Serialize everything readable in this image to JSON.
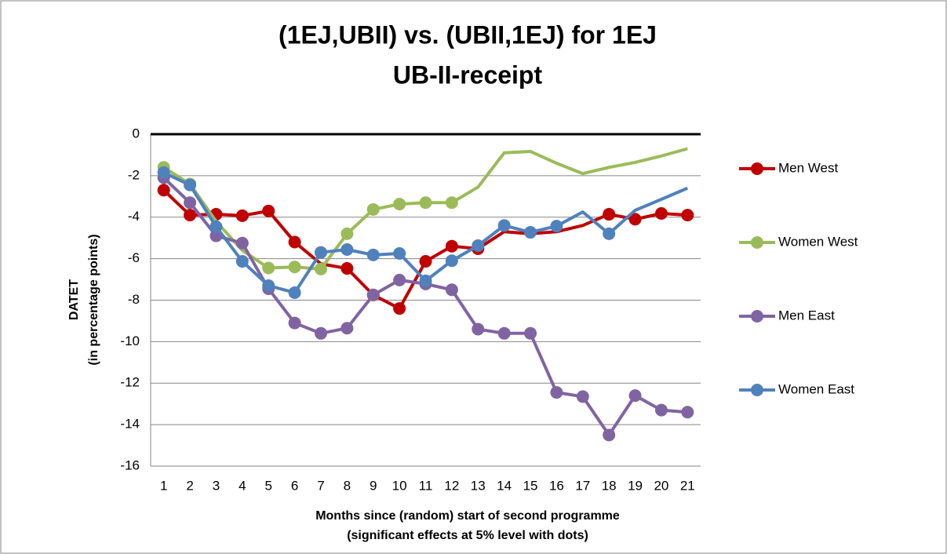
{
  "chart_data": {
    "type": "line",
    "title": [
      "(1EJ,UBII) vs. (UBII,1EJ) for 1EJ",
      "UB-II-receipt"
    ],
    "ylabel": [
      "DATET",
      "(in percentage points)"
    ],
    "xlabel": [
      "Months since (random) start of second programme",
      "(significant  effects at 5% level with dots)"
    ],
    "categories": [
      "1",
      "2",
      "3",
      "4",
      "5",
      "6",
      "7",
      "8",
      "9",
      "10",
      "11",
      "12",
      "13",
      "14",
      "15",
      "16",
      "17",
      "18",
      "19",
      "20",
      "21"
    ],
    "series": [
      {
        "name": "Men West",
        "color": "#c00000",
        "values": [
          -2.7,
          -3.9,
          -3.86,
          -3.93,
          -3.7,
          -5.2,
          -6.25,
          -6.47,
          -7.75,
          -8.4,
          -6.13,
          -5.4,
          -5.52,
          -4.7,
          -4.8,
          -4.7,
          -4.4,
          -3.86,
          -4.1,
          -3.82,
          -3.9
        ],
        "significant": [
          true,
          true,
          true,
          true,
          true,
          true,
          false,
          true,
          true,
          true,
          true,
          true,
          true,
          false,
          false,
          false,
          false,
          true,
          true,
          true,
          true
        ]
      },
      {
        "name": "Women West",
        "color": "#9bbb59",
        "values": [
          -1.6,
          -2.4,
          -4.2,
          -5.6,
          -6.45,
          -6.4,
          -6.5,
          -4.8,
          -3.63,
          -3.37,
          -3.3,
          -3.3,
          -2.55,
          -0.9,
          -0.83,
          -1.4,
          -1.9,
          -1.6,
          -1.36,
          -1.05,
          -0.7
        ],
        "significant": [
          true,
          true,
          false,
          false,
          true,
          true,
          true,
          true,
          true,
          true,
          true,
          true,
          false,
          false,
          false,
          false,
          false,
          false,
          false,
          false,
          false
        ]
      },
      {
        "name": "Men East",
        "color": "#8064a2",
        "values": [
          -2.1,
          -3.3,
          -4.9,
          -5.25,
          -7.45,
          -9.1,
          -9.6,
          -9.35,
          -7.75,
          -7.03,
          -7.22,
          -7.5,
          -9.4,
          -9.6,
          -9.6,
          -12.45,
          -12.65,
          -14.5,
          -12.6,
          -13.3,
          -13.4
        ],
        "significant": [
          true,
          true,
          true,
          true,
          true,
          true,
          true,
          true,
          true,
          true,
          true,
          true,
          true,
          true,
          true,
          true,
          true,
          true,
          true,
          true,
          true
        ]
      },
      {
        "name": "Women East",
        "color": "#4f81bd",
        "values": [
          -1.85,
          -2.45,
          -4.46,
          -6.13,
          -7.3,
          -7.64,
          -5.7,
          -5.56,
          -5.82,
          -5.75,
          -7.07,
          -6.1,
          -5.37,
          -4.4,
          -4.73,
          -4.43,
          -3.75,
          -4.8,
          -3.67,
          -3.14,
          -2.6
        ],
        "significant": [
          true,
          true,
          true,
          true,
          true,
          true,
          true,
          true,
          true,
          true,
          true,
          true,
          true,
          true,
          true,
          true,
          false,
          true,
          false,
          false,
          false
        ]
      }
    ],
    "ylim": [
      -16,
      0
    ],
    "yticks": [
      -16,
      -14,
      -12,
      -10,
      -8,
      -6,
      -4,
      -2,
      0
    ],
    "grid": true,
    "legend": "right"
  }
}
